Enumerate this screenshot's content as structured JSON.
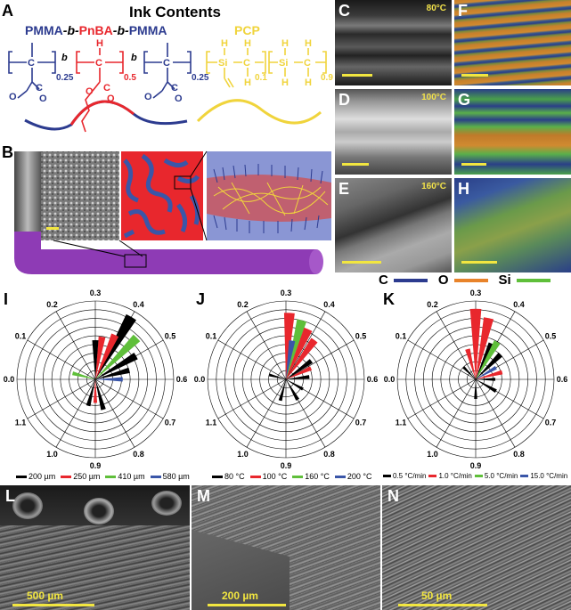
{
  "panelA": {
    "label": "A",
    "title": "Ink Contents",
    "polymer_name_1": "PMMA",
    "polymer_sep_1": "-b-",
    "polymer_name_2": "PnBA",
    "polymer_sep_2": "-b-",
    "polymer_name_3": "PMMA",
    "pcp_label": "PCP",
    "sub_025a": "0.25",
    "sub_05": "0.5",
    "sub_025b": "0.25",
    "sub_01": "0.1",
    "sub_09": "0.9",
    "b1": "b",
    "b2": "b",
    "colors": {
      "blue": "#2c3b8f",
      "red": "#e8272d",
      "yellow": "#f0d43c"
    }
  },
  "panelB": {
    "label": "B"
  },
  "photos": [
    {
      "label": "C",
      "temp": "80°C"
    },
    {
      "label": "D",
      "temp": "100°C"
    },
    {
      "label": "E",
      "temp": "160°C"
    },
    {
      "label": "F",
      "temp": ""
    },
    {
      "label": "G",
      "temp": ""
    },
    {
      "label": "H",
      "temp": ""
    }
  ],
  "element_legend": {
    "c": "C",
    "o": "O",
    "si": "Si"
  },
  "polars": [
    {
      "label": "I",
      "legend": [
        "200 µm",
        "250 µm",
        "410 µm",
        "580 µm"
      ]
    },
    {
      "label": "J",
      "legend": [
        "80 °C",
        "100 °C",
        "160 °C",
        "200 °C"
      ]
    },
    {
      "label": "K",
      "legend": [
        "0.5 °C/min",
        "1.0 °C/min",
        "5.0 °C/min",
        "15.0 °C/min"
      ]
    }
  ],
  "polar_ticks": [
    "0.0",
    "0.1",
    "0.2",
    "0.3",
    "0.4",
    "0.5",
    "0.6",
    "0.7",
    "0.8",
    "0.9",
    "1.0",
    "1.1"
  ],
  "legend_colors": [
    "#000000",
    "#e8272d",
    "#5fbf3a",
    "#3a56a8"
  ],
  "sem": [
    {
      "label": "L",
      "scale": "500 µm"
    },
    {
      "label": "M",
      "scale": "200 µm"
    },
    {
      "label": "N",
      "scale": "50 µm"
    }
  ]
}
